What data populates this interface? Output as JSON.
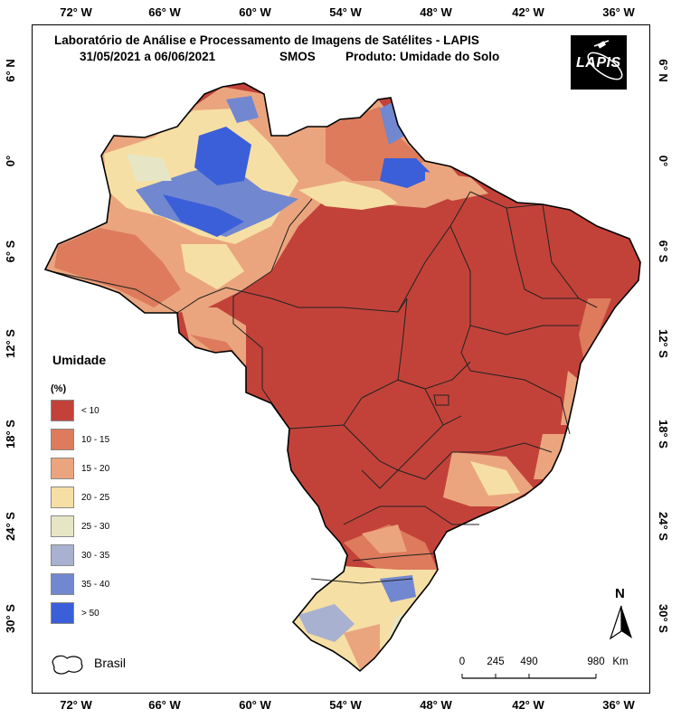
{
  "title": {
    "line1": "Laboratório de Análise e Processamento de Imagens de Satélites - LAPIS",
    "line2_dates": "31/05/2021  a  06/06/2021",
    "line2_sensor": "SMOS",
    "line2_product": "Produto: Umidade do Solo"
  },
  "logo": {
    "text": "LAPIS"
  },
  "axes": {
    "longitude_labels": [
      "72° W",
      "66° W",
      "60° W",
      "54° W",
      "48° W",
      "42° W",
      "36° W"
    ],
    "latitude_labels": [
      "6° N",
      "0°",
      "6° S",
      "12° S",
      "18° S",
      "24° S",
      "30° S"
    ]
  },
  "legend": {
    "title": "Umidade",
    "unit": "(%)",
    "classes": [
      {
        "label": "< 10",
        "color": "#c2423a"
      },
      {
        "label": "10 - 15",
        "color": "#dd7b5c"
      },
      {
        "label": "15 - 20",
        "color": "#eba57e"
      },
      {
        "label": "20 - 25",
        "color": "#f6dfa4"
      },
      {
        "label": "25 - 30",
        "color": "#e6e6c6"
      },
      {
        "label": "30 - 35",
        "color": "#a8b1cf"
      },
      {
        "label": "35 - 40",
        "color": "#7187d0"
      },
      {
        "label": "> 50",
        "color": "#3a5fd8"
      }
    ]
  },
  "boundary_legend": {
    "label": "Brasil"
  },
  "scale_bar": {
    "ticks": [
      "0",
      "245",
      "490",
      "980"
    ],
    "unit": "Km"
  },
  "north_arrow": {
    "label": "N"
  }
}
